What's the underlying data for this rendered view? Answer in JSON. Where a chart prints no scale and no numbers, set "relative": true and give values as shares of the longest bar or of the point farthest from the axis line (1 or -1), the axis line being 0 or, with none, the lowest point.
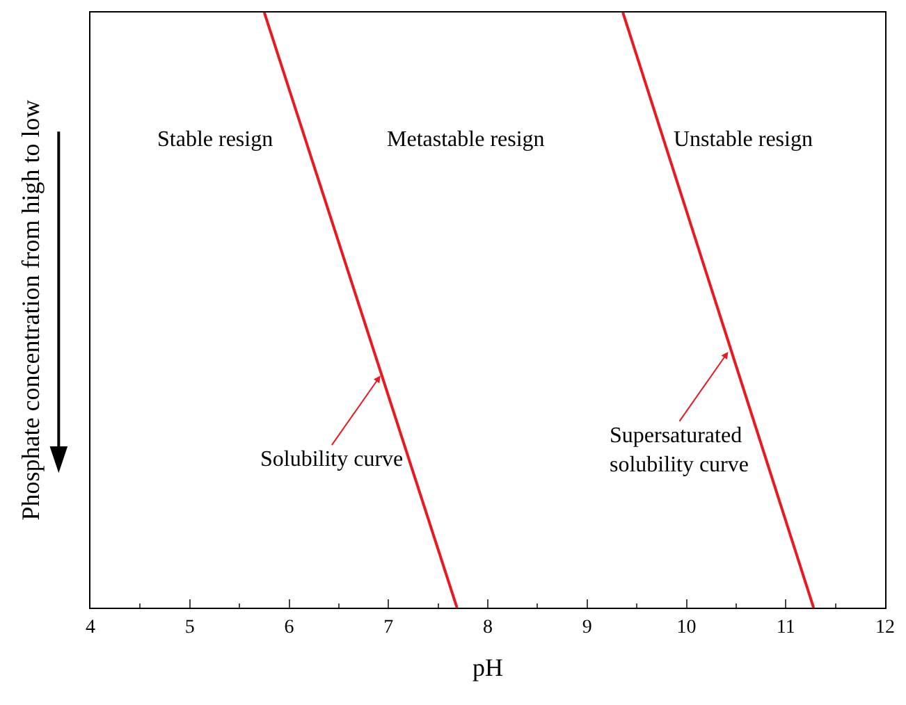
{
  "chart_data": {
    "type": "line",
    "relative": true,
    "xlabel": "pH",
    "ylabel": "Phosphate concentration from high to low",
    "xlim": [
      4,
      12
    ],
    "xticks": [
      4,
      5,
      6,
      7,
      8,
      9,
      10,
      11,
      12
    ],
    "marker": "none",
    "line_style": "solid",
    "series": [
      {
        "color": "#e8191f",
        "x": [
          5.75,
          7.69
        ],
        "values": [
          1,
          0
        ]
      },
      {
        "color": "#e8191f",
        "x": [
          9.36,
          11.28
        ],
        "values": [
          1,
          0
        ]
      }
    ],
    "annotations": [
      "Stable resign",
      "Metastable resign",
      "Unstable resign",
      {
        "text": "Solubility curve",
        "x": 6.92,
        "y": 0.39
      },
      {
        "text": "Supersaturated\nsolubility curve",
        "x": 10.42,
        "y": 0.43
      }
    ]
  }
}
